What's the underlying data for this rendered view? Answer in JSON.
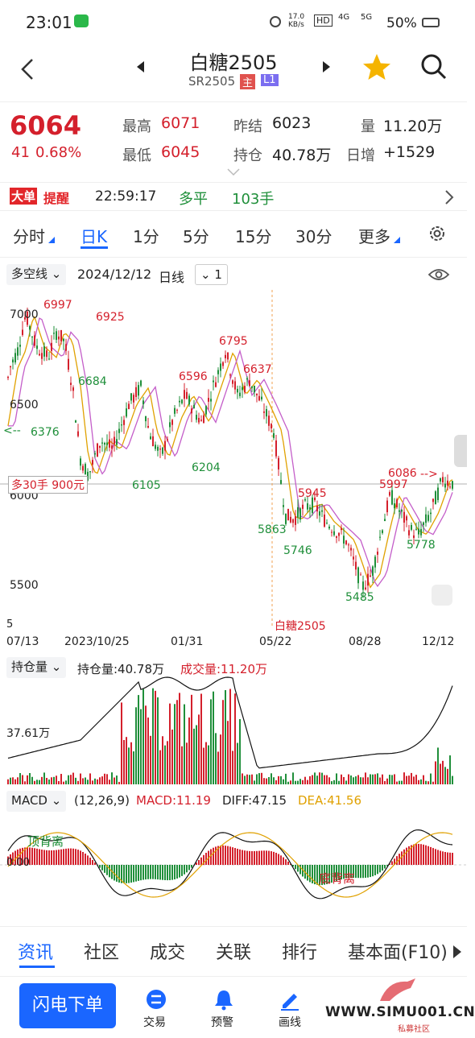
{
  "status": {
    "time": "23:01",
    "speed": "17.0\nKB/s",
    "battery": "50%",
    "net1": "4G",
    "net2": "5G"
  },
  "nav": {
    "title": "白糖2505",
    "code": "SR2505",
    "badge_main": "主",
    "badge_l1": "L1"
  },
  "quote": {
    "last": "6064",
    "change": "41",
    "pct": "0.68%",
    "high_label": "最高",
    "high": "6071",
    "low_label": "最低",
    "low": "6045",
    "prev_label": "昨结",
    "prev": "6023",
    "oi_label": "持仓",
    "oi": "40.78万",
    "vol_label": "量",
    "vol": "11.20万",
    "daily_label": "日增",
    "daily": "+1529"
  },
  "alert": {
    "logo1": "大单",
    "logo2": "提醒",
    "time": "22:59:17",
    "type": "多平",
    "qty": "103手"
  },
  "tabs": [
    {
      "label": "分时"
    },
    {
      "label": "日K"
    },
    {
      "label": "1分"
    },
    {
      "label": "5分"
    },
    {
      "label": "15分"
    },
    {
      "label": "30分"
    },
    {
      "label": "更多"
    }
  ],
  "toolbar": {
    "indicator": "多空线",
    "date": "2024/12/12",
    "period": "日线",
    "count": "1"
  },
  "chart_data": {
    "type": "candlestick",
    "y_ticks": [
      "7000",
      "6500",
      "6000",
      "5500"
    ],
    "x_ticks": [
      "07/13",
      "2023/10/25",
      "01/31",
      "05/22",
      "08/28",
      "12/12"
    ],
    "annotations_red": [
      "6997",
      "6925",
      "6795",
      "6637",
      "6596",
      "5945",
      "5997",
      "6086"
    ],
    "annotations_green": [
      "6684",
      "6376",
      "6105",
      "6204",
      "5863",
      "5746",
      "5485",
      "5778"
    ],
    "position_label": "多30手  900元",
    "contract_label": "白糖2505",
    "axis_5": "5"
  },
  "oi_panel": {
    "selector": "持仓量",
    "oi_text": "持仓量:40.78万",
    "vol_text": "成交量:11.20万",
    "y_label": "37.61万"
  },
  "macd_panel": {
    "selector": "MACD",
    "params": "(12,26,9)",
    "macd": "MACD:11.19",
    "diff": "DIFF:47.15",
    "dea": "DEA:41.56",
    "zero": "0.00",
    "top_div": "顶背离",
    "bottom_div": "底背离"
  },
  "bottom_tabs": [
    {
      "label": "资讯"
    },
    {
      "label": "社区"
    },
    {
      "label": "成交"
    },
    {
      "label": "关联"
    },
    {
      "label": "排行"
    },
    {
      "label": "基本面(F10)"
    }
  ],
  "actions": {
    "flash": "闪电下单",
    "trade": "交易",
    "alert": "预警",
    "draw": "画线",
    "watermark": "WWW.SIMU001.CN",
    "watermark_sub": "私募社区"
  },
  "colors": {
    "up": "#d4202c",
    "down": "#1f8f3a",
    "accent": "#1a66ff",
    "star": "#f5b400"
  }
}
